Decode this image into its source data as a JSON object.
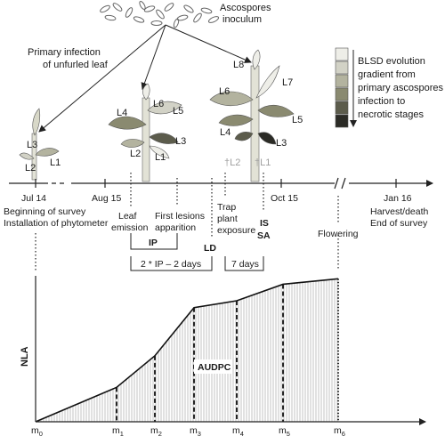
{
  "inoculum": {
    "title_line1": "Ascospores",
    "title_line2": "inoculum"
  },
  "primary_infection": {
    "line1": "Primary infection",
    "line2": "of unfurled leaf"
  },
  "legend": {
    "lines": [
      "BLSD evolution",
      "gradient from",
      "primary ascospores",
      "infection to",
      "necrotic stages"
    ],
    "swatches": [
      "#eeeee8",
      "#d2d2c6",
      "#b3b39f",
      "#8a8a70",
      "#5c5c4c",
      "#2b2b26"
    ]
  },
  "plants": {
    "p1": [
      "L3",
      "L2",
      "L1"
    ],
    "p2": [
      "L4",
      "L6",
      "L5",
      "L3",
      "L2",
      "L1"
    ],
    "p3": [
      "L8",
      "L6",
      "L7",
      "L5",
      "L4",
      "L3"
    ],
    "dead": [
      "†L2",
      "†L1"
    ]
  },
  "timeline": {
    "dates": [
      "Jul 14",
      "Aug 15",
      "Oct 15",
      "Jan 16"
    ],
    "begin_line1": "Beginning of survey",
    "begin_line2": "Installation of phytometer",
    "leaf_emission_line1": "Leaf",
    "leaf_emission_line2": "emission",
    "first_lesions_line1": "First lesions",
    "first_lesions_line2": "apparition",
    "ip": "IP",
    "ld": "LD",
    "trap_line1": "Trap",
    "trap_line2": "plant",
    "trap_line3": "exposure",
    "is": "IS",
    "sa": "SA",
    "flowering": "Flowering",
    "harvest_line1": "Harvest/death",
    "harvest_line2": "End of survey",
    "two_ip": "2 * IP – 2 days",
    "seven_days": "7 days"
  },
  "graph": {
    "ylabel": "NLA",
    "area_label": "AUDPC",
    "m_labels": [
      "m",
      "m",
      "m",
      "m",
      "m",
      "m",
      "m"
    ],
    "m_subs": [
      "0",
      "1",
      "2",
      "3",
      "4",
      "5",
      "6"
    ]
  },
  "chart_data": {
    "type": "area",
    "x": [
      "m0",
      "m1",
      "m2",
      "m3",
      "m4",
      "m5",
      "m6"
    ],
    "series": [
      {
        "values": [
          0,
          0.25,
          0.48,
          0.83,
          0.88,
          1.0,
          1.04
        ]
      }
    ],
    "xlabel": "",
    "ylabel": "NLA",
    "ylim": [
      0,
      1.1
    ],
    "grid": false
  }
}
